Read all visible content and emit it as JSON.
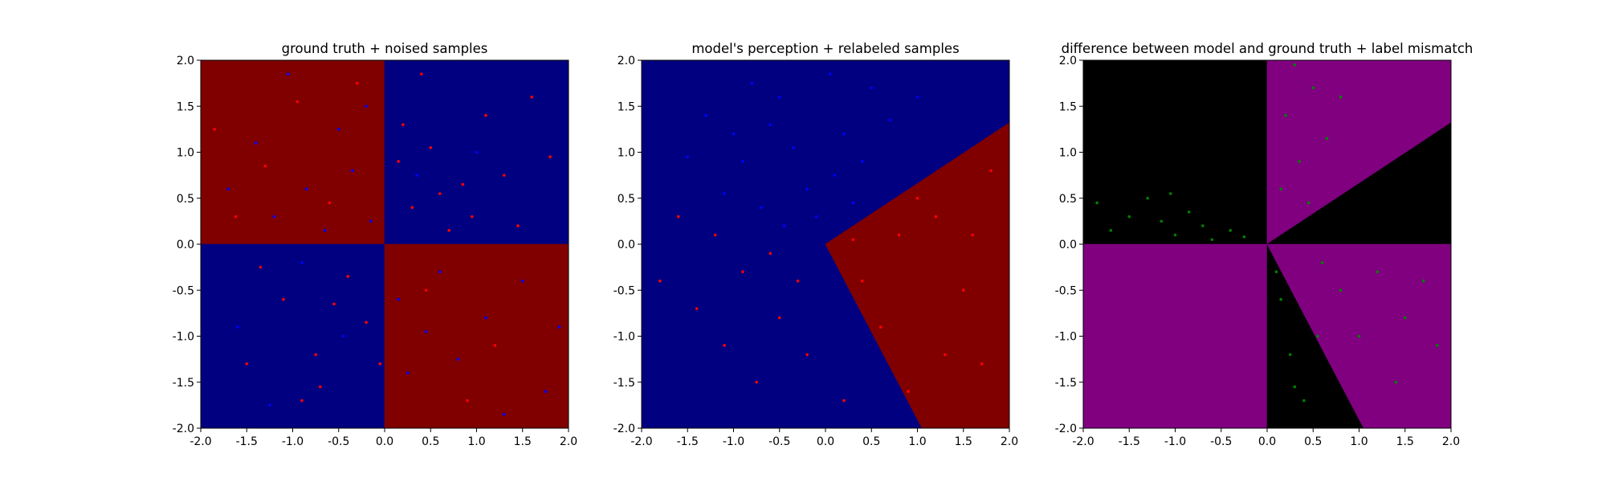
{
  "figure": {
    "background": "#ffffff"
  },
  "colors": {
    "class_red_region": "#800000",
    "class_blue_region": "#000080",
    "red_sample": "#ff0000",
    "blue_sample": "#0000ff",
    "agree_region": "#000000",
    "disagree_region": "#800080",
    "mismatch_sample": "#008000"
  },
  "chart_data": [
    {
      "type": "scatter",
      "title": "ground truth + noised samples",
      "xlim": [
        -2.0,
        2.0
      ],
      "ylim": [
        -2.0,
        2.0
      ],
      "xticks": [
        "-2.0",
        "-1.5",
        "-1.0",
        "-0.5",
        "0.0",
        "0.5",
        "1.0",
        "1.5",
        "2.0"
      ],
      "yticks": [
        "-2.0",
        "-1.5",
        "-1.0",
        "-0.5",
        "0.0",
        "0.5",
        "1.0",
        "1.5",
        "2.0"
      ],
      "background": {
        "type": "decision_regions",
        "regions": [
          {
            "color": "#800000",
            "polygon": [
              [
                -2,
                0
              ],
              [
                0,
                0
              ],
              [
                0,
                2
              ],
              [
                -2,
                2
              ]
            ]
          },
          {
            "color": "#000080",
            "polygon": [
              [
                0,
                0
              ],
              [
                2,
                0
              ],
              [
                2,
                2
              ],
              [
                0,
                2
              ]
            ]
          },
          {
            "color": "#000080",
            "polygon": [
              [
                -2,
                -2
              ],
              [
                0,
                -2
              ],
              [
                0,
                0
              ],
              [
                -2,
                0
              ]
            ]
          },
          {
            "color": "#800000",
            "polygon": [
              [
                0,
                -2
              ],
              [
                2,
                -2
              ],
              [
                2,
                0
              ],
              [
                0,
                0
              ]
            ]
          }
        ]
      },
      "series": [
        {
          "color": "#ff0000",
          "points": [
            [
              -1.85,
              1.25
            ],
            [
              -1.62,
              0.3
            ],
            [
              -1.3,
              0.85
            ],
            [
              -0.95,
              1.55
            ],
            [
              -0.6,
              0.45
            ],
            [
              -0.3,
              1.75
            ],
            [
              -1.1,
              -0.6
            ],
            [
              -0.75,
              -1.2
            ],
            [
              -0.4,
              -0.35
            ],
            [
              -1.5,
              -1.3
            ],
            [
              -0.2,
              -0.85
            ],
            [
              -0.9,
              -1.7
            ],
            [
              0.3,
              0.4
            ],
            [
              0.5,
              1.05
            ],
            [
              0.85,
              0.65
            ],
            [
              1.1,
              1.4
            ],
            [
              0.4,
              1.85
            ],
            [
              1.45,
              0.2
            ],
            [
              0.7,
              0.15
            ],
            [
              1.8,
              0.95
            ],
            [
              0.2,
              1.3
            ],
            [
              0.95,
              0.3
            ],
            [
              1.3,
              0.75
            ],
            [
              0.6,
              0.55
            ],
            [
              1.6,
              1.6
            ],
            [
              0.15,
              0.9
            ],
            [
              -0.55,
              -0.65
            ],
            [
              -1.35,
              -0.25
            ],
            [
              -0.05,
              -1.3
            ],
            [
              -0.7,
              -1.55
            ],
            [
              0.45,
              -0.5
            ],
            [
              1.2,
              -1.1
            ],
            [
              0.9,
              -1.7
            ]
          ]
        },
        {
          "color": "#0000ff",
          "points": [
            [
              -1.4,
              1.1
            ],
            [
              -0.85,
              0.6
            ],
            [
              -0.5,
              1.25
            ],
            [
              -0.15,
              0.25
            ],
            [
              -1.7,
              0.6
            ],
            [
              -1.05,
              1.85
            ],
            [
              -0.35,
              0.8
            ],
            [
              -0.65,
              0.15
            ],
            [
              -1.2,
              0.3
            ],
            [
              -0.2,
              1.5
            ],
            [
              0.35,
              0.75
            ],
            [
              1.0,
              1.0
            ],
            [
              0.6,
              -0.3
            ],
            [
              1.1,
              -0.8
            ],
            [
              0.25,
              -1.4
            ],
            [
              1.5,
              -0.4
            ],
            [
              0.8,
              -1.25
            ],
            [
              1.75,
              -1.6
            ],
            [
              0.45,
              -0.95
            ],
            [
              1.3,
              -1.85
            ],
            [
              0.15,
              -0.6
            ],
            [
              1.9,
              -0.9
            ],
            [
              -1.6,
              -0.9
            ],
            [
              -0.45,
              -1.0
            ],
            [
              -1.25,
              -1.75
            ],
            [
              -0.9,
              -0.2
            ]
          ]
        }
      ]
    },
    {
      "type": "scatter",
      "title": "model's perception + relabeled samples",
      "xlim": [
        -2.0,
        2.0
      ],
      "ylim": [
        -2.0,
        2.0
      ],
      "xticks": [
        "-2.0",
        "-1.5",
        "-1.0",
        "-0.5",
        "0.0",
        "0.5",
        "1.0",
        "1.5",
        "2.0"
      ],
      "yticks": [
        "-2.0",
        "-1.5",
        "-1.0",
        "-0.5",
        "0.0",
        "0.5",
        "1.0",
        "1.5",
        "2.0"
      ],
      "background": {
        "type": "decision_regions",
        "regions": [
          {
            "color": "#000080",
            "polygon": [
              [
                -2,
                -2
              ],
              [
                1.05,
                -2
              ],
              [
                0,
                0
              ],
              [
                2,
                1.32
              ],
              [
                2,
                2
              ],
              [
                -2,
                2
              ]
            ]
          },
          {
            "color": "#800000",
            "polygon": [
              [
                0,
                0
              ],
              [
                1.05,
                -2
              ],
              [
                2,
                -2
              ],
              [
                2,
                1.32
              ]
            ]
          }
        ]
      },
      "series": [
        {
          "color": "#0000ff",
          "points": [
            [
              -1.3,
              1.4
            ],
            [
              -0.9,
              0.9
            ],
            [
              -0.5,
              1.6
            ],
            [
              -0.2,
              0.6
            ],
            [
              0.2,
              1.2
            ],
            [
              -0.7,
              0.4
            ],
            [
              0.5,
              1.7
            ],
            [
              -1.1,
              0.55
            ],
            [
              -0.35,
              1.05
            ],
            [
              0.05,
              1.85
            ],
            [
              0.4,
              0.9
            ],
            [
              -0.8,
              1.75
            ],
            [
              -1.5,
              0.95
            ],
            [
              0.7,
              1.35
            ],
            [
              -0.1,
              0.3
            ],
            [
              -0.6,
              1.3
            ],
            [
              0.1,
              0.75
            ],
            [
              -1.0,
              1.2
            ],
            [
              0.3,
              0.45
            ],
            [
              -0.45,
              0.2
            ],
            [
              1.0,
              1.6
            ]
          ]
        },
        {
          "color": "#ff0000",
          "points": [
            [
              -1.6,
              0.3
            ],
            [
              -1.2,
              0.1
            ],
            [
              -0.9,
              -0.3
            ],
            [
              -0.5,
              -0.8
            ],
            [
              -0.2,
              -1.2
            ],
            [
              -1.4,
              -0.7
            ],
            [
              -0.75,
              -1.5
            ],
            [
              0.4,
              -0.4
            ],
            [
              0.8,
              0.1
            ],
            [
              1.2,
              0.3
            ],
            [
              1.5,
              -0.5
            ],
            [
              1.8,
              0.8
            ],
            [
              0.6,
              -0.9
            ],
            [
              1.3,
              -1.2
            ],
            [
              0.9,
              -1.6
            ],
            [
              1.7,
              -1.3
            ],
            [
              0.3,
              0.05
            ],
            [
              -0.3,
              -0.4
            ],
            [
              -1.1,
              -1.1
            ],
            [
              1.0,
              0.5
            ],
            [
              1.6,
              0.1
            ],
            [
              -0.6,
              -0.1
            ],
            [
              -1.8,
              -0.4
            ],
            [
              0.2,
              -1.7
            ]
          ]
        }
      ]
    },
    {
      "type": "scatter",
      "title": "difference between model and ground truth + label mismatch",
      "xlim": [
        -2.0,
        2.0
      ],
      "ylim": [
        -2.0,
        2.0
      ],
      "xticks": [
        "-2.0",
        "-1.5",
        "-1.0",
        "-0.5",
        "0.0",
        "0.5",
        "1.0",
        "1.5",
        "2.0"
      ],
      "yticks": [
        "-2.0",
        "-1.5",
        "-1.0",
        "-0.5",
        "0.0",
        "0.5",
        "1.0",
        "1.5",
        "2.0"
      ],
      "background": {
        "type": "decision_regions",
        "regions": [
          {
            "color": "#000000",
            "polygon": [
              [
                -2,
                0
              ],
              [
                0,
                0
              ],
              [
                0,
                2
              ],
              [
                -2,
                2
              ]
            ]
          },
          {
            "color": "#800080",
            "polygon": [
              [
                0,
                0
              ],
              [
                2,
                1.32
              ],
              [
                2,
                2
              ],
              [
                0,
                2
              ]
            ]
          },
          {
            "color": "#000000",
            "polygon": [
              [
                0,
                0
              ],
              [
                2,
                0
              ],
              [
                2,
                1.32
              ]
            ]
          },
          {
            "color": "#800080",
            "polygon": [
              [
                -2,
                -2
              ],
              [
                0,
                -2
              ],
              [
                0,
                0
              ],
              [
                -2,
                0
              ]
            ]
          },
          {
            "color": "#000000",
            "polygon": [
              [
                0,
                0
              ],
              [
                0,
                -2
              ],
              [
                1.05,
                -2
              ]
            ]
          },
          {
            "color": "#800080",
            "polygon": [
              [
                0,
                0
              ],
              [
                1.05,
                -2
              ],
              [
                2,
                -2
              ],
              [
                2,
                0
              ]
            ]
          }
        ]
      },
      "series": [
        {
          "color": "#008000",
          "points": [
            [
              -1.85,
              0.45
            ],
            [
              -1.7,
              0.15
            ],
            [
              -1.5,
              0.3
            ],
            [
              -1.3,
              0.5
            ],
            [
              -1.15,
              0.25
            ],
            [
              -1.0,
              0.1
            ],
            [
              -0.85,
              0.35
            ],
            [
              -0.7,
              0.2
            ],
            [
              -0.6,
              0.05
            ],
            [
              -0.4,
              0.15
            ],
            [
              -1.05,
              0.55
            ],
            [
              -0.25,
              0.08
            ],
            [
              0.2,
              1.4
            ],
            [
              0.35,
              0.9
            ],
            [
              0.5,
              1.7
            ],
            [
              0.15,
              0.6
            ],
            [
              0.65,
              1.15
            ],
            [
              0.3,
              1.95
            ],
            [
              0.8,
              1.6
            ],
            [
              0.45,
              0.45
            ],
            [
              1.2,
              -0.3
            ],
            [
              1.5,
              -0.8
            ],
            [
              0.8,
              -0.5
            ],
            [
              1.0,
              -1.0
            ],
            [
              1.7,
              -0.4
            ],
            [
              1.4,
              -1.5
            ],
            [
              0.6,
              -0.2
            ],
            [
              1.85,
              -1.1
            ],
            [
              0.15,
              -0.6
            ],
            [
              0.25,
              -1.2
            ],
            [
              0.4,
              -1.7
            ],
            [
              0.1,
              -0.3
            ],
            [
              0.55,
              -1.0
            ],
            [
              0.3,
              -1.55
            ]
          ]
        }
      ]
    }
  ]
}
